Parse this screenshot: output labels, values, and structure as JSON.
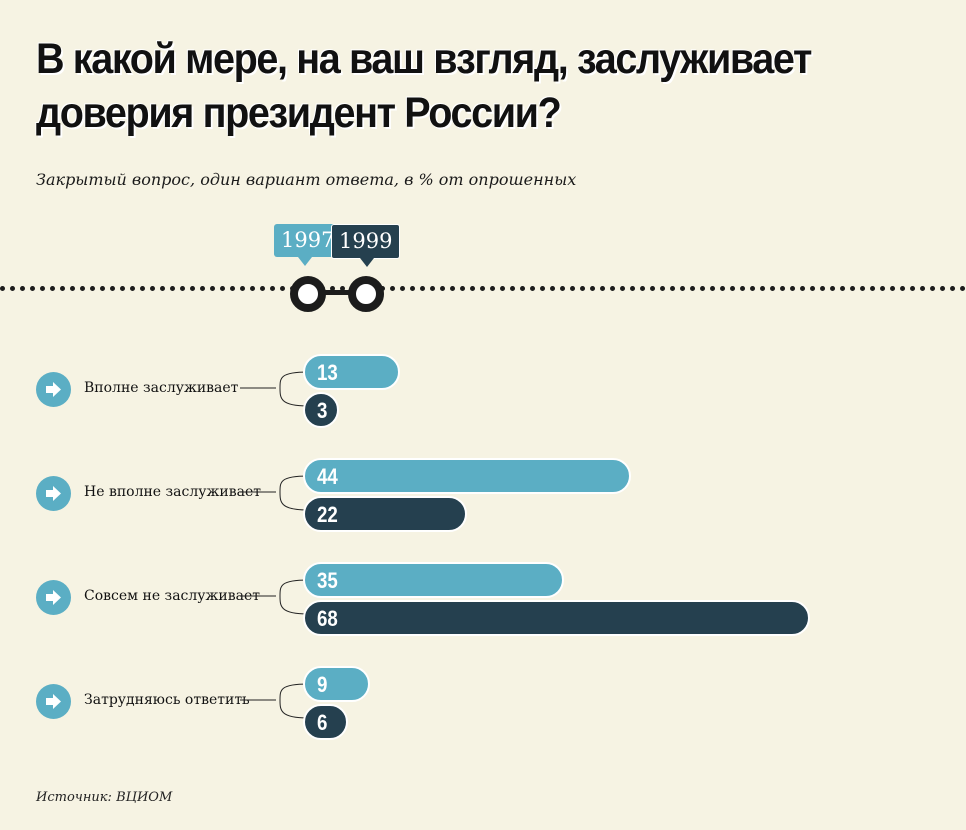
{
  "title_line1": "В какой мере, на ваш взгляд, заслуживает",
  "title_line2": "доверия президент России?",
  "subtitle": "Закрытый вопрос, один вариант ответа, в % от опрошенных",
  "years": [
    "1997",
    "1999"
  ],
  "source": "Источник: ВЦИОМ",
  "colors": {
    "series_1997": "#5baec4",
    "series_1999": "#25404f",
    "background": "#f6f3e3"
  },
  "chart_data": {
    "type": "bar",
    "orientation": "horizontal",
    "categories": [
      "Вполне заслуживает",
      "Не вполне заслуживает",
      "Совсем не заслуживает",
      "Затрудняюсь ответить"
    ],
    "series": [
      {
        "name": "1997",
        "values": [
          13,
          44,
          35,
          9
        ]
      },
      {
        "name": "1999",
        "values": [
          3,
          22,
          68,
          6
        ]
      }
    ],
    "title": "В какой мере, на ваш взгляд, заслуживает доверия президент России?",
    "xlabel": "",
    "ylabel": "",
    "xlim": [
      0,
      70
    ],
    "grid": false,
    "legend": "top"
  }
}
